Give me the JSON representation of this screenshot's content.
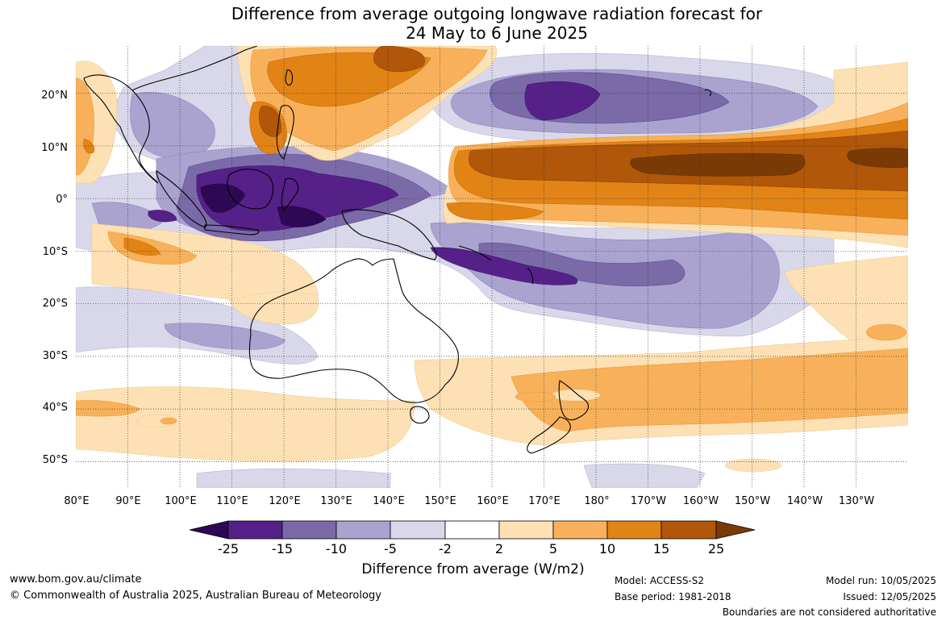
{
  "title": {
    "line1": "Difference from average outgoing longwave radiation forecast for",
    "line2": "24 May to 6 June 2025"
  },
  "map": {
    "latitude_labels": [
      "20°N",
      "10°N",
      "0°",
      "10°S",
      "20°S",
      "30°S",
      "40°S",
      "50°S"
    ],
    "longitude_labels": [
      "80°E",
      "90°E",
      "100°E",
      "110°E",
      "120°E",
      "130°E",
      "140°E",
      "150°E",
      "160°E",
      "170°E",
      "180°",
      "170°W",
      "160°W",
      "150°W",
      "140°W",
      "130°W"
    ],
    "gridlines": "dotted",
    "region": "Indo-Pacific, Australia and New Zealand",
    "colors": {
      "purple_gt25": "#2e0854",
      "purple_15_25": "#552188",
      "purple_10_15": "#7b6aa8",
      "purple_5_10": "#aaa3cf",
      "purple_2_5": "#d8d8ea",
      "white_neutral": "#ffffff",
      "orange_2_5": "#fde1b5",
      "orange_5_10": "#f8b15a",
      "orange_10_15": "#e28316",
      "orange_15_25": "#b0570a",
      "orange_gt25": "#7a3a06",
      "land_outline": "#000000"
    }
  },
  "colorbar": {
    "ticks": [
      "-25",
      "-15",
      "-10",
      "-5",
      "-2",
      "2",
      "5",
      "10",
      "15",
      "25"
    ],
    "title": "Difference from average (W/m2)"
  },
  "footer": {
    "website": "www.bom.gov.au/climate",
    "copyright": "© Commonwealth of Australia 2025, Australian Bureau of Meteorology",
    "model": "Model: ACCESS-S2",
    "base_period": "Base period: 1981-2018",
    "model_run": "Model run: 10/05/2025",
    "issued": "Issued: 12/05/2025",
    "disclaimer": "Boundaries are not considered authoritative"
  }
}
